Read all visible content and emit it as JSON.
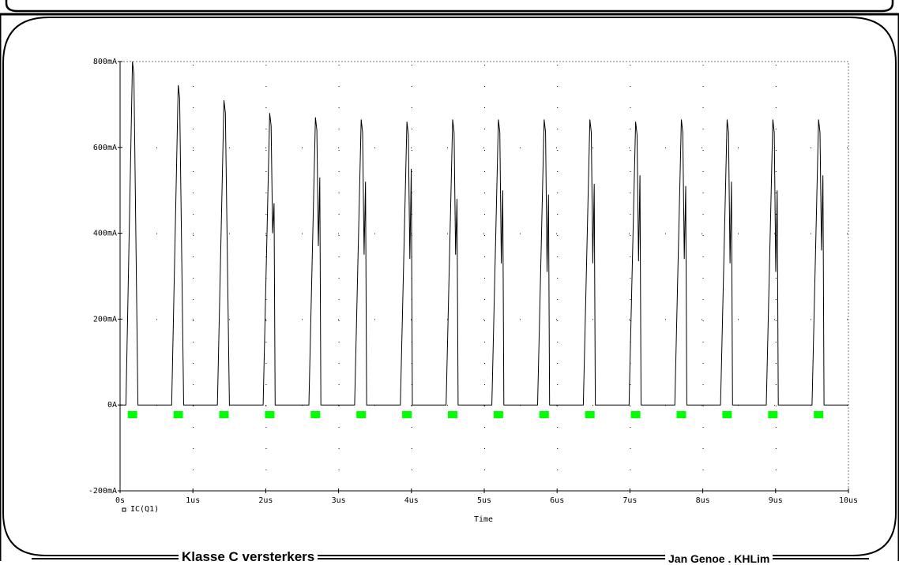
{
  "footer": {
    "left_label": "Klasse C versterkers",
    "right_label": "Jan Genoe . KHLim"
  },
  "chart_data": {
    "type": "line",
    "title": "",
    "xlabel": "Time",
    "ylabel": "",
    "xlim": [
      0,
      10
    ],
    "ylim": [
      -200,
      800
    ],
    "x_unit": "us",
    "y_unit": "mA",
    "x_ticks": [
      0,
      1,
      2,
      3,
      4,
      5,
      6,
      7,
      8,
      9,
      10
    ],
    "x_tick_labels": [
      "0s",
      "1us",
      "2us",
      "3us",
      "4us",
      "5us",
      "6us",
      "7us",
      "8us",
      "9us",
      "10us"
    ],
    "y_ticks": [
      -200,
      0,
      200,
      400,
      600,
      800
    ],
    "y_tick_labels": [
      "-200mA",
      "0A",
      "200mA",
      "400mA",
      "600mA",
      "800mA"
    ],
    "grid": true,
    "legend": [
      "IC(Q1)"
    ],
    "series_color": "#000000",
    "marker_color": "#00ff00",
    "period_us": 0.628,
    "series": [
      {
        "name": "IC(Q1)",
        "pulse_peaks_mA": [
          800,
          745,
          710,
          680,
          670,
          665,
          660,
          665,
          665,
          665,
          665,
          660,
          665,
          665,
          665,
          665
        ],
        "secondary_peaks_mA": [
          0,
          0,
          0,
          470,
          530,
          520,
          550,
          480,
          500,
          490,
          515,
          535,
          510,
          520,
          500,
          535
        ],
        "secondary_dips_mA": [
          0,
          0,
          0,
          400,
          370,
          350,
          340,
          350,
          330,
          310,
          330,
          335,
          340,
          330,
          310,
          360
        ]
      }
    ]
  }
}
